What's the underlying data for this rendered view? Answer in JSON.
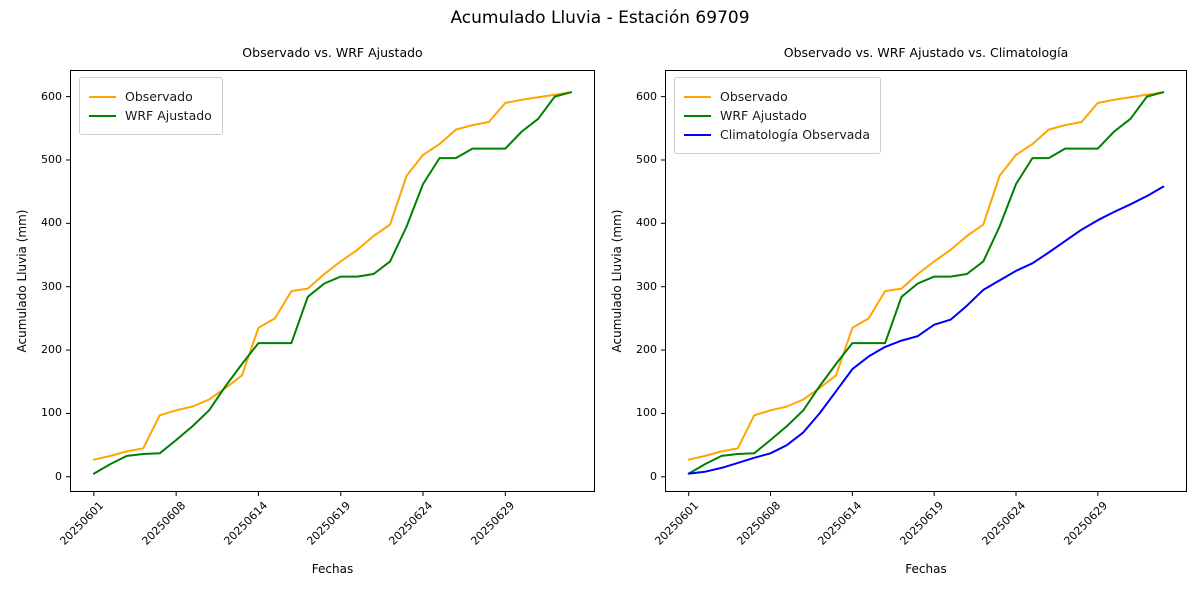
{
  "suptitle": "Acumulado Lluvia - Estación 69709",
  "colors": {
    "observado": "#FFA500",
    "wrf_ajustado": "#008000",
    "climatologia": "#0000FF",
    "spine": "#000000",
    "text": "#000000"
  },
  "chart_data": [
    {
      "type": "line",
      "title": "Observado vs. WRF Ajustado",
      "xlabel": "Fechas",
      "ylabel": "Acumulado Lluvia (mm)",
      "grid": false,
      "legend_position": "upper-left",
      "n_points": 30,
      "ylim": [
        0,
        600
      ],
      "yticks": [
        0,
        100,
        200,
        300,
        400,
        500,
        600
      ],
      "xtick_indices": [
        0,
        5,
        10,
        15,
        20,
        25
      ],
      "xtick_labels": [
        "20250601",
        "20250608",
        "20250614",
        "20250619",
        "20250624",
        "20250629"
      ],
      "series": [
        {
          "name": "Observado",
          "color": "#FFA500",
          "values": [
            27,
            33,
            40,
            45,
            97,
            105,
            111,
            122,
            140,
            160,
            235,
            250,
            293,
            297,
            320,
            340,
            358,
            380,
            398,
            475,
            508,
            525,
            548,
            555,
            560,
            590,
            595,
            599,
            603,
            607
          ]
        },
        {
          "name": "WRF Ajustado",
          "color": "#008000",
          "values": [
            5,
            20,
            33,
            36,
            37,
            58,
            80,
            105,
            143,
            178,
            211,
            211,
            211,
            284,
            305,
            316,
            316,
            320,
            340,
            395,
            462,
            503,
            503,
            518,
            518,
            518,
            545,
            565,
            600,
            607
          ]
        }
      ]
    },
    {
      "type": "line",
      "title": "Observado vs. WRF Ajustado vs. Climatología",
      "xlabel": "Fechas",
      "ylabel": "Acumulado Lluvia (mm)",
      "grid": false,
      "legend_position": "upper-left",
      "n_points": 30,
      "ylim": [
        0,
        600
      ],
      "yticks": [
        0,
        100,
        200,
        300,
        400,
        500,
        600
      ],
      "xtick_indices": [
        0,
        5,
        10,
        15,
        20,
        25
      ],
      "xtick_labels": [
        "20250601",
        "20250608",
        "20250614",
        "20250619",
        "20250624",
        "20250629"
      ],
      "series": [
        {
          "name": "Observado",
          "color": "#FFA500",
          "values": [
            27,
            33,
            40,
            45,
            97,
            105,
            111,
            122,
            140,
            160,
            235,
            250,
            293,
            297,
            320,
            340,
            358,
            380,
            398,
            475,
            508,
            525,
            548,
            555,
            560,
            590,
            595,
            599,
            603,
            607
          ]
        },
        {
          "name": "WRF Ajustado",
          "color": "#008000",
          "values": [
            5,
            20,
            33,
            36,
            37,
            58,
            80,
            105,
            143,
            178,
            211,
            211,
            211,
            284,
            305,
            316,
            316,
            320,
            340,
            395,
            462,
            503,
            503,
            518,
            518,
            518,
            545,
            565,
            600,
            607
          ]
        },
        {
          "name": "Climatología Observada",
          "color": "#0000FF",
          "values": [
            5,
            8,
            14,
            22,
            30,
            37,
            50,
            70,
            100,
            135,
            170,
            190,
            205,
            215,
            222,
            240,
            248,
            270,
            295,
            310,
            325,
            337,
            354,
            372,
            390,
            405,
            418,
            430,
            443,
            458
          ]
        }
      ]
    }
  ]
}
